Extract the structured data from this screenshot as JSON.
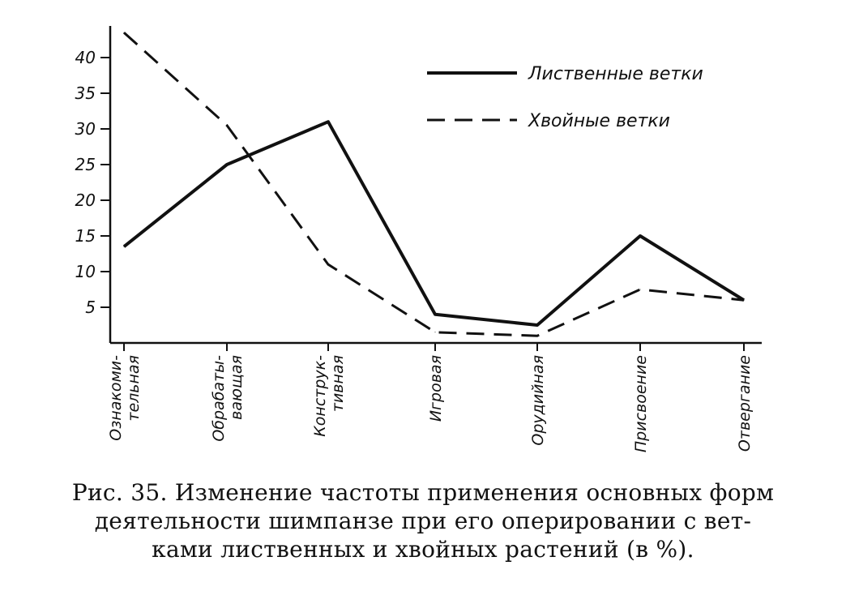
{
  "chart_data": {
    "type": "line",
    "categories": [
      [
        "Ознакоми-",
        "тельная"
      ],
      [
        "Обрабаты-",
        "вающая"
      ],
      [
        "Конструк-",
        "тивная"
      ],
      [
        "Игровая"
      ],
      [
        "Орудийная"
      ],
      [
        "Присвоение"
      ],
      [
        "Отвергание"
      ]
    ],
    "series": [
      {
        "name": "Лиственные ветки",
        "style": "solid",
        "values": [
          13.5,
          25,
          31,
          4,
          2.5,
          15,
          6
        ]
      },
      {
        "name": "Хвойные ветки",
        "style": "dashed",
        "values": [
          43.5,
          30.5,
          11,
          1.5,
          1,
          7.5,
          6
        ]
      }
    ],
    "yticks": [
      "5",
      "10",
      "15",
      "20",
      "25",
      "30",
      "35",
      "40"
    ],
    "ylim": [
      0,
      45
    ],
    "legend_position": "top-right",
    "grid": false,
    "color": "#111111"
  },
  "caption": {
    "line1": "Рис. 35. Изменение частоты применения основных форм",
    "line2": "деятельности шимпанзе при его оперировании с вет-",
    "line3": "ками лиственных и хвойных растений (в %)."
  }
}
